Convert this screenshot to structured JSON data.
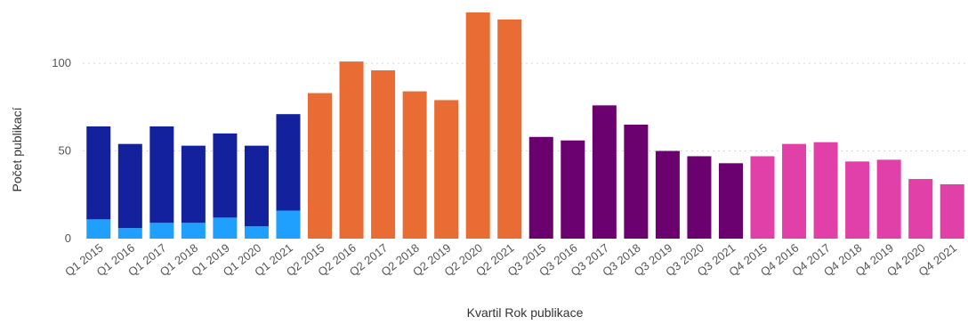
{
  "chart_data": {
    "type": "bar",
    "stacked": true,
    "xlabel": "Kvartil Rok publikace",
    "ylabel": "Počet publikací",
    "ylim": [
      0,
      130
    ],
    "yticks": [
      0,
      50,
      100
    ],
    "grid": true,
    "categories": [
      "Q1 2015",
      "Q1 2016",
      "Q1 2017",
      "Q1 2018",
      "Q1 2019",
      "Q1 2020",
      "Q1 2021",
      "Q2 2015",
      "Q2 2016",
      "Q2 2017",
      "Q2 2018",
      "Q2 2019",
      "Q2 2020",
      "Q2 2021",
      "Q3 2015",
      "Q3 2016",
      "Q3 2017",
      "Q3 2018",
      "Q3 2019",
      "Q3 2020",
      "Q3 2021",
      "Q4 2015",
      "Q4 2016",
      "Q4 2017",
      "Q4 2018",
      "Q4 2019",
      "Q4 2020",
      "Q4 2021"
    ],
    "series": [
      {
        "color": "#1fa0ff",
        "values": [
          11,
          6,
          9,
          9,
          12,
          7,
          16,
          0,
          0,
          0,
          0,
          0,
          0,
          0,
          0,
          0,
          0,
          0,
          0,
          0,
          0,
          0,
          0,
          0,
          0,
          0,
          0,
          0
        ]
      },
      {
        "color": "#13219c",
        "values": [
          53,
          48,
          55,
          44,
          48,
          46,
          55,
          0,
          0,
          0,
          0,
          0,
          0,
          0,
          0,
          0,
          0,
          0,
          0,
          0,
          0,
          0,
          0,
          0,
          0,
          0,
          0,
          0
        ]
      },
      {
        "color": "#e86c33",
        "values": [
          0,
          0,
          0,
          0,
          0,
          0,
          0,
          83,
          101,
          96,
          84,
          79,
          129,
          125,
          0,
          0,
          0,
          0,
          0,
          0,
          0,
          0,
          0,
          0,
          0,
          0,
          0,
          0
        ]
      },
      {
        "color": "#6b006f",
        "values": [
          0,
          0,
          0,
          0,
          0,
          0,
          0,
          0,
          0,
          0,
          0,
          0,
          0,
          0,
          58,
          56,
          76,
          65,
          50,
          47,
          43,
          0,
          0,
          0,
          0,
          0,
          0,
          0
        ]
      },
      {
        "color": "#e040a8",
        "values": [
          0,
          0,
          0,
          0,
          0,
          0,
          0,
          0,
          0,
          0,
          0,
          0,
          0,
          0,
          0,
          0,
          0,
          0,
          0,
          0,
          0,
          47,
          54,
          55,
          44,
          45,
          34,
          31
        ]
      }
    ]
  }
}
